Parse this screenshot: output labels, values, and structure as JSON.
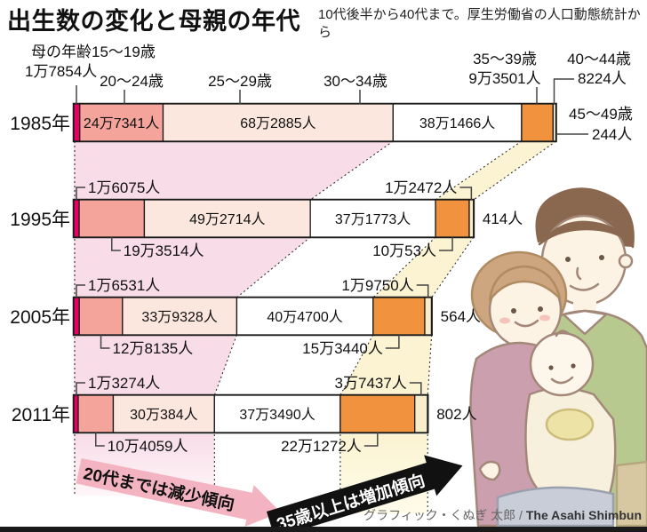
{
  "title": "出生数の変化と母親の年代",
  "subtitle": "10代後半から40代まで。厚生労働省の人口動態統計から",
  "credit": {
    "jp": "グラフィック・くぬぎ 太郎 /",
    "en": " The Asahi Shimbun"
  },
  "annotations": {
    "decline_arrow": "20代までは減少傾向",
    "increase_arrow": "35歳以上は増加傾向"
  },
  "colors": {
    "age_15_19": "#e50062",
    "age_20_24": "#f5a49c",
    "age_25_29": "#fce7df",
    "age_30_34": "#ffffff",
    "age_35_39": "#f0923e",
    "age_40_44": "#f8efca",
    "age_45_49": "#ffffff",
    "bar_border": "#1a1a1a",
    "pink_band": "#f8dce7",
    "yellow_band": "#fbf3d2",
    "pink_arrow": "#f3b3c0",
    "black_arrow": "#111111",
    "leader_line": "#444444"
  },
  "chart_data": {
    "type": "bar",
    "orientation": "horizontal-stacked",
    "unit": "人",
    "note": "bar length proportional to births; scale ≈ 3.79e-4 px per person",
    "age_groups": [
      {
        "key": "15-19",
        "label": "母の年齢15〜19歳",
        "short": "15〜19歳"
      },
      {
        "key": "20-24",
        "label": "20〜24歳"
      },
      {
        "key": "25-29",
        "label": "25〜29歳"
      },
      {
        "key": "30-34",
        "label": "30〜34歳"
      },
      {
        "key": "35-39",
        "label": "35〜39歳"
      },
      {
        "key": "40-44",
        "label": "40〜44歳"
      },
      {
        "key": "45-49",
        "label": "45〜49歳"
      }
    ],
    "years": [
      {
        "label": "1985年",
        "values": [
          17854,
          247341,
          682885,
          381466,
          93501,
          8224,
          244
        ],
        "display": [
          "1万7854人",
          "24万7341人",
          "68万2885人",
          "38万1466人",
          "9万3501人",
          "8224人",
          "244人"
        ]
      },
      {
        "label": "1995年",
        "values": [
          16075,
          193514,
          492714,
          371773,
          100053,
          12472,
          414
        ],
        "display": [
          "1万6075人",
          "19万3514人",
          "49万2714人",
          "37万1773人",
          "10万53人",
          "1万2472人",
          "414人"
        ]
      },
      {
        "label": "2005年",
        "values": [
          16531,
          128135,
          339328,
          404700,
          153440,
          19750,
          564
        ],
        "display": [
          "1万6531人",
          "12万8135人",
          "33万9328人",
          "40万4700人",
          "15万3440人",
          "1万9750人",
          "564人"
        ]
      },
      {
        "label": "2011年",
        "values": [
          13274,
          104059,
          300384,
          373490,
          221272,
          37437,
          802
        ],
        "display": [
          "1万3274人",
          "10万4059人",
          "30万384人",
          "37万3490人",
          "22万1272人",
          "3万7437人",
          "802人"
        ]
      }
    ]
  }
}
